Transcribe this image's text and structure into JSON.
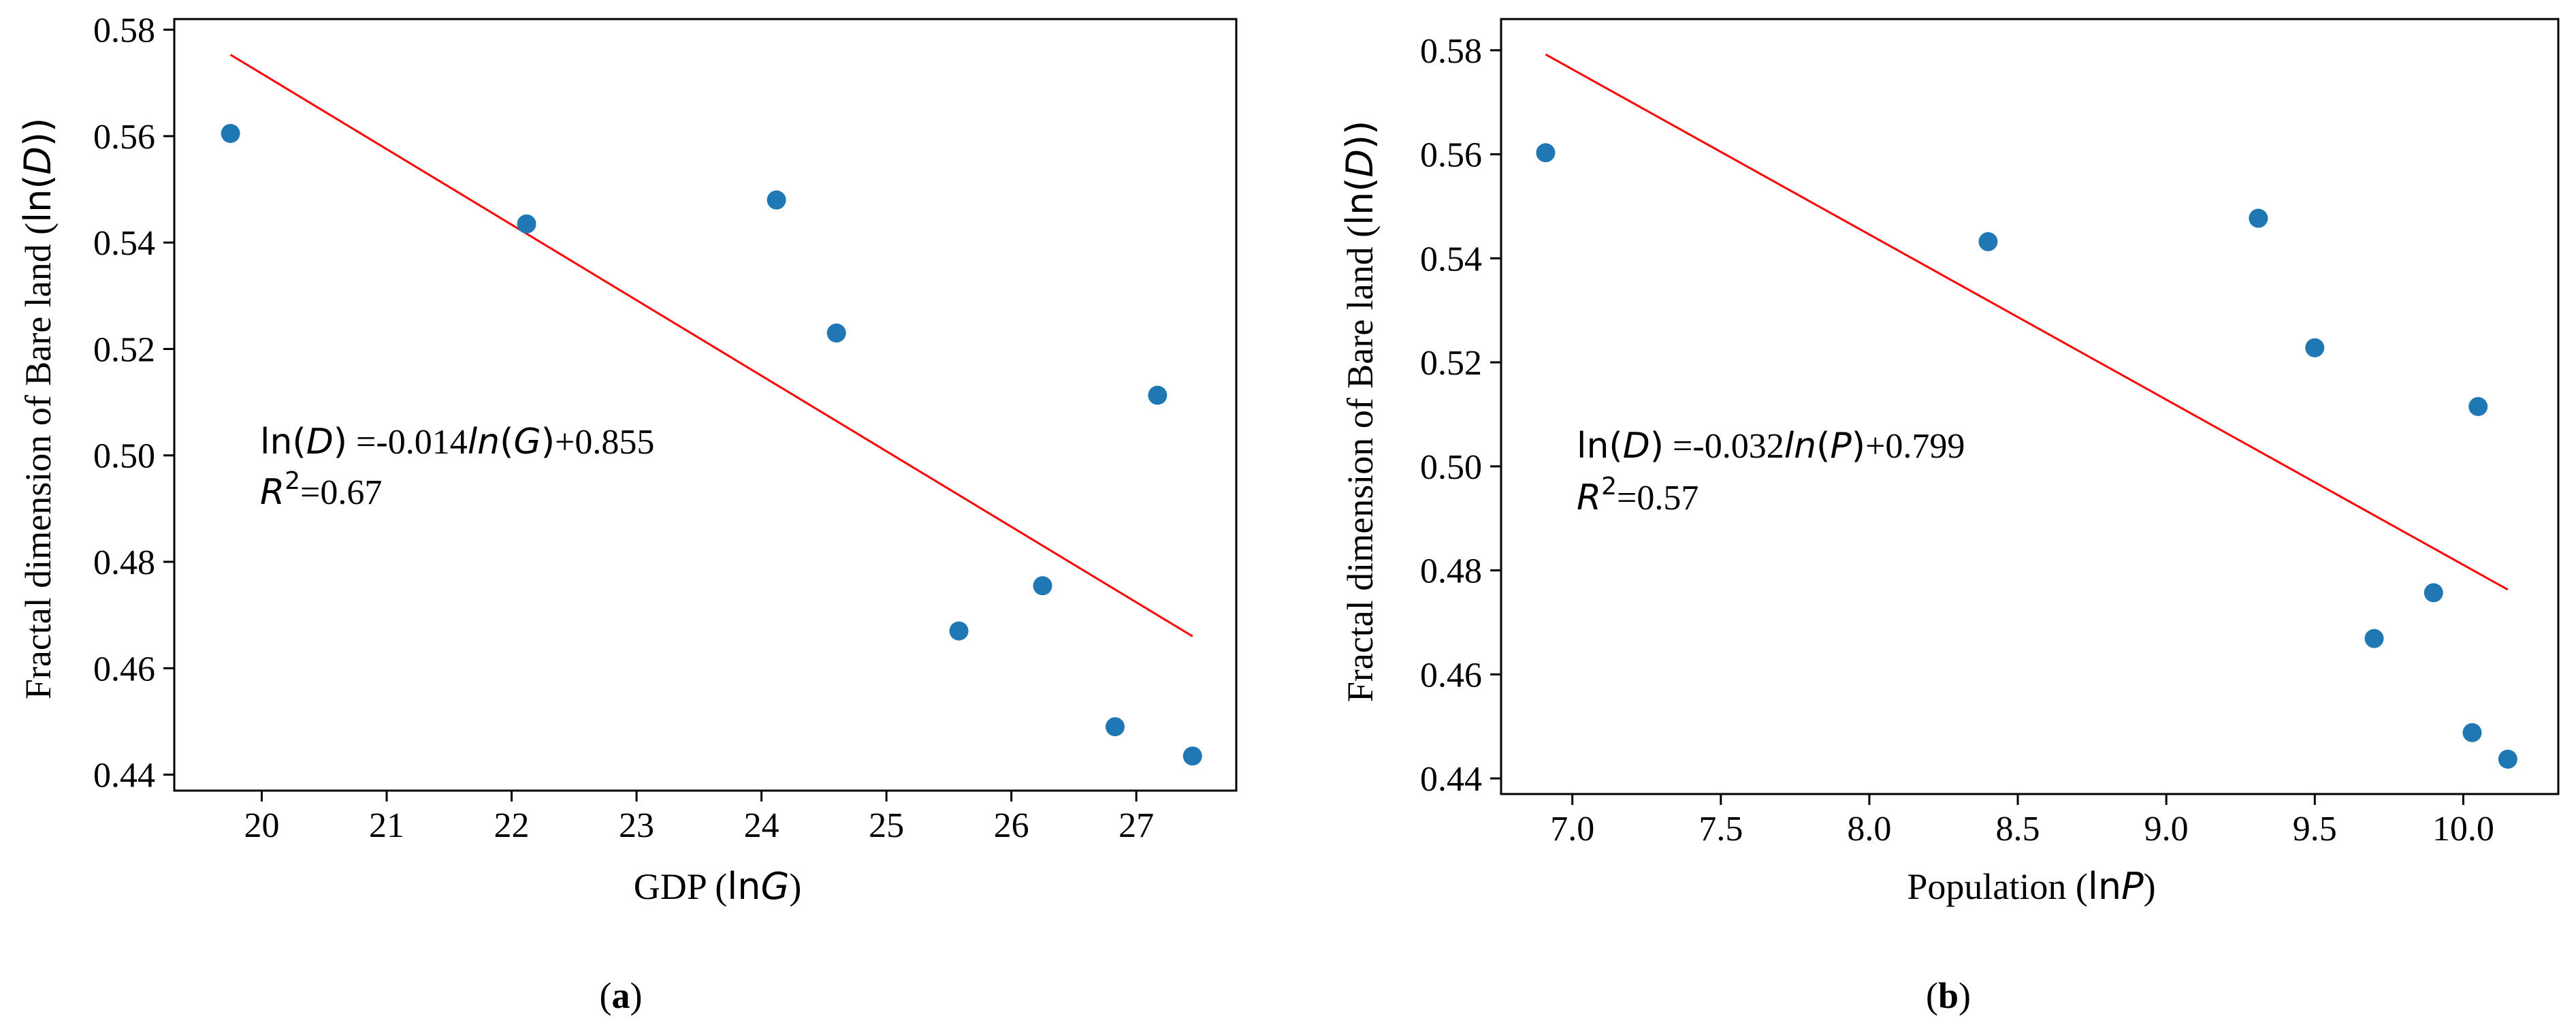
{
  "chart_data": [
    {
      "type": "scatter",
      "panel": "(a)",
      "panel_letter": "a",
      "xlabel": "GDP (lnG)",
      "xlabel_parts": {
        "prefix": "GDP (",
        "ln": "ln",
        "var": "G",
        "suffix": ")"
      },
      "ylabel": "Fractal dimension of Bare land (ln(D))",
      "ylabel_parts": {
        "prefix": "Fractal dimension of Bare land (",
        "ln": "ln(",
        "var": "D",
        "suffix": "))"
      },
      "xlim": [
        19.3,
        27.8
      ],
      "ylim": [
        0.437,
        0.582
      ],
      "xticks": [
        20,
        21,
        22,
        23,
        24,
        25,
        26,
        27
      ],
      "yticks": [
        0.44,
        0.46,
        0.48,
        0.5,
        0.52,
        0.54,
        0.56,
        0.58
      ],
      "points": [
        {
          "x": 19.75,
          "y": 0.5605
        },
        {
          "x": 22.12,
          "y": 0.5435
        },
        {
          "x": 24.12,
          "y": 0.548
        },
        {
          "x": 24.6,
          "y": 0.523
        },
        {
          "x": 25.58,
          "y": 0.467
        },
        {
          "x": 26.25,
          "y": 0.4755
        },
        {
          "x": 26.83,
          "y": 0.449
        },
        {
          "x": 27.17,
          "y": 0.5113
        },
        {
          "x": 27.45,
          "y": 0.4435
        }
      ],
      "fit_line": {
        "x": [
          19.75,
          27.45
        ],
        "y": [
          0.5753,
          0.466
        ]
      },
      "equation": "ln(D) =-0.014ln(G)+0.855",
      "equation_parts": {
        "lhs": "ln(",
        "lhs_var": "D",
        "lhs_close": ")",
        "eq": " =-0.014",
        "fn": "ln",
        "open": "(",
        "var": "G",
        "close": ")",
        "const": "+0.855"
      },
      "r2": "R2=0.67",
      "r2_parts": {
        "r": "R",
        "sup": "2",
        "val": "=0.67"
      },
      "colors": {
        "points": "#1f77b4",
        "fit": "#ff0000"
      }
    },
    {
      "type": "scatter",
      "panel": "(b)",
      "panel_letter": "b",
      "xlabel": "Population (lnP)",
      "xlabel_parts": {
        "prefix": "Population (",
        "ln": "ln",
        "var": "P",
        "suffix": ")"
      },
      "ylabel": "Fractal dimension of Bare land (ln(D))",
      "ylabel_parts": {
        "prefix": "Fractal dimension of Bare land (",
        "ln": "ln(",
        "var": "D",
        "suffix": "))"
      },
      "xlim": [
        6.76,
        10.32
      ],
      "ylim": [
        0.437,
        0.586
      ],
      "xticks": [
        "7.0",
        "7.5",
        "8.0",
        "8.5",
        "9.0",
        "9.5",
        "10.0"
      ],
      "yticks": [
        0.44,
        0.46,
        0.48,
        0.5,
        0.52,
        0.54,
        0.56,
        0.58
      ],
      "points": [
        {
          "x": 6.91,
          "y": 0.5603
        },
        {
          "x": 8.4,
          "y": 0.5432
        },
        {
          "x": 9.31,
          "y": 0.5477
        },
        {
          "x": 9.5,
          "y": 0.5228
        },
        {
          "x": 9.7,
          "y": 0.4669
        },
        {
          "x": 9.9,
          "y": 0.4757
        },
        {
          "x": 10.03,
          "y": 0.4488
        },
        {
          "x": 10.05,
          "y": 0.5115
        },
        {
          "x": 10.15,
          "y": 0.4437
        }
      ],
      "fit_line": {
        "x": [
          6.91,
          10.15
        ],
        "y": [
          0.5792,
          0.4763
        ]
      },
      "equation": "ln(D) =-0.032ln(P)+0.799",
      "equation_parts": {
        "lhs": "ln(",
        "lhs_var": "D",
        "lhs_close": ")",
        "eq": " =-0.032",
        "fn": "ln",
        "open": "(",
        "var": "P",
        "close": ")",
        "const": "+0.799"
      },
      "r2": "R2=0.57",
      "r2_parts": {
        "r": "R",
        "sup": "2",
        "val": "=0.57"
      },
      "colors": {
        "points": "#1f77b4",
        "fit": "#ff0000"
      }
    }
  ]
}
